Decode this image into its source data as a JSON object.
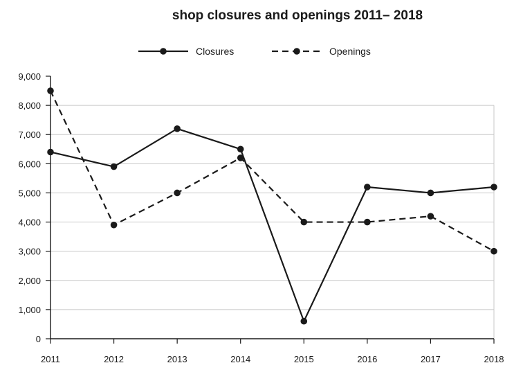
{
  "chart_data": {
    "type": "line",
    "title": "shop closures and openings 2011– 2018",
    "xlabel": "",
    "ylabel": "",
    "categories": [
      "2011",
      "2012",
      "2013",
      "2014",
      "2015",
      "2016",
      "2017",
      "2018"
    ],
    "ylim": [
      0,
      9000
    ],
    "yticks": [
      "0",
      "1,000",
      "2,000",
      "3,000",
      "4,000",
      "5,000",
      "6,000",
      "7,000",
      "8,000",
      "9,000"
    ],
    "grid": true,
    "legend_position": "top-center",
    "series": [
      {
        "name": "Closures",
        "style": "solid",
        "values": [
          6400,
          5900,
          7200,
          6500,
          600,
          5200,
          5000,
          5200
        ]
      },
      {
        "name": "Openings",
        "style": "dashed",
        "values": [
          8500,
          3900,
          5000,
          6200,
          4000,
          4000,
          4200,
          3000
        ]
      }
    ],
    "line_color": "#1a1a1a",
    "grid_color": "#c8c8c8"
  }
}
